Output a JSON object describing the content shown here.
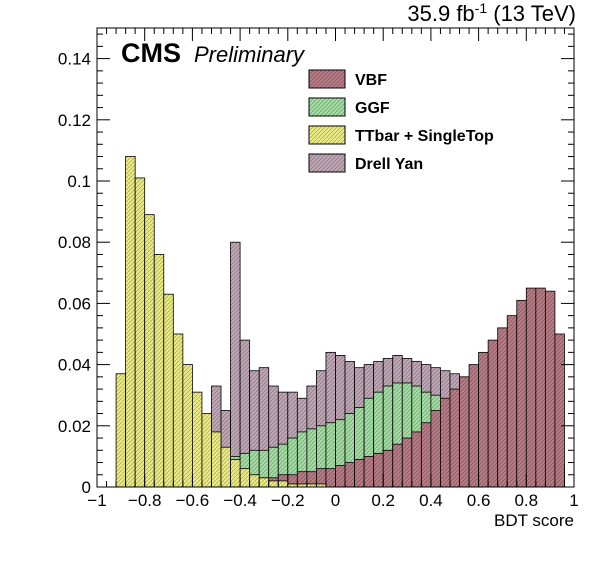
{
  "header": {
    "lumi": "35.9 fb",
    "lumi_exp": "-1",
    "energy": "(13 TeV)",
    "cms": "CMS",
    "prelim": "Preliminary"
  },
  "chart_data": {
    "type": "bar",
    "style": "stacked-step-histogram",
    "xlabel": "BDT score",
    "ylabel": "",
    "xlim": [
      -1,
      1
    ],
    "ylim": [
      0,
      0.15
    ],
    "grid": false,
    "legend_position": "top-right",
    "x_ticks": [
      -1,
      -0.8,
      -0.6,
      -0.4,
      -0.2,
      0,
      0.2,
      0.4,
      0.6,
      0.8,
      1
    ],
    "x_tick_labels": [
      "−1",
      "−0.8",
      "−0.6",
      "−0.4",
      "−0.2",
      "0",
      "0.2",
      "0.4",
      "0.6",
      "0.8",
      "1"
    ],
    "y_ticks": [
      0,
      0.02,
      0.04,
      0.06,
      0.08,
      0.1,
      0.12,
      0.14
    ],
    "y_tick_labels": [
      "0",
      "0.02",
      "0.04",
      "0.06",
      "0.08",
      "0.1",
      "0.12",
      "0.14"
    ],
    "bins": {
      "start": -0.96,
      "width": 0.04,
      "count": 49
    },
    "series": [
      {
        "name": "VBF",
        "color": "#b87d87",
        "values": [
          0.0,
          0.0,
          0.0,
          0.0,
          0.0,
          0.0,
          0.0,
          0.0,
          0.0,
          0.001,
          0.001,
          0.001,
          0.002,
          0.002,
          0.002,
          0.003,
          0.003,
          0.003,
          0.004,
          0.004,
          0.005,
          0.005,
          0.006,
          0.006,
          0.007,
          0.008,
          0.009,
          0.01,
          0.011,
          0.012,
          0.014,
          0.016,
          0.018,
          0.021,
          0.025,
          0.029,
          0.032,
          0.036,
          0.04,
          0.044,
          0.048,
          0.052,
          0.056,
          0.061,
          0.065,
          0.065,
          0.064,
          0.05,
          0.0
        ]
      },
      {
        "name": "GGF",
        "color": "#a6e0a6",
        "values": [
          0.0,
          0.0,
          0.0,
          0.0,
          0.0,
          0.0,
          0.0,
          0.002,
          0.004,
          0.006,
          0.007,
          0.008,
          0.009,
          0.01,
          0.011,
          0.012,
          0.012,
          0.013,
          0.014,
          0.016,
          0.018,
          0.019,
          0.02,
          0.021,
          0.022,
          0.024,
          0.026,
          0.029,
          0.031,
          0.033,
          0.034,
          0.034,
          0.033,
          0.031,
          0.03,
          0.028,
          0.026,
          0.024,
          0.022,
          0.02,
          0.019,
          0.017,
          0.016,
          0.014,
          0.013,
          0.011,
          0.009,
          0.007,
          0.0
        ]
      },
      {
        "name": "TTbar + SingleTop",
        "color": "#eeee88",
        "values": [
          0.0,
          0.037,
          0.108,
          0.101,
          0.089,
          0.076,
          0.063,
          0.05,
          0.04,
          0.031,
          0.024,
          0.018,
          0.013,
          0.009,
          0.006,
          0.004,
          0.003,
          0.002,
          0.002,
          0.001,
          0.001,
          0.001,
          0.001,
          0.0,
          0.0,
          0.0,
          0.0,
          0.0,
          0.0,
          0.0,
          0.0,
          0.0,
          0.0,
          0.0,
          0.0,
          0.0,
          0.0,
          0.0,
          0.0,
          0.0,
          0.0,
          0.0,
          0.0,
          0.0,
          0.0,
          0.0,
          0.0,
          0.0,
          0.0
        ]
      },
      {
        "name": "Drell Yan",
        "color": "#c2a9b8",
        "values": [
          0.0,
          0.0,
          0.0,
          0.0,
          0.0,
          0.0,
          0.0,
          0.0,
          0.0,
          0.012,
          0.018,
          0.033,
          0.025,
          0.08,
          0.048,
          0.038,
          0.039,
          0.033,
          0.031,
          0.031,
          0.029,
          0.033,
          0.038,
          0.044,
          0.043,
          0.041,
          0.039,
          0.04,
          0.041,
          0.042,
          0.043,
          0.042,
          0.041,
          0.04,
          0.039,
          0.038,
          0.037,
          0.036,
          0.035,
          0.034,
          0.031,
          0.027,
          0.023,
          0.018,
          0.013,
          0.009,
          0.006,
          0.004,
          0.0
        ]
      }
    ]
  }
}
